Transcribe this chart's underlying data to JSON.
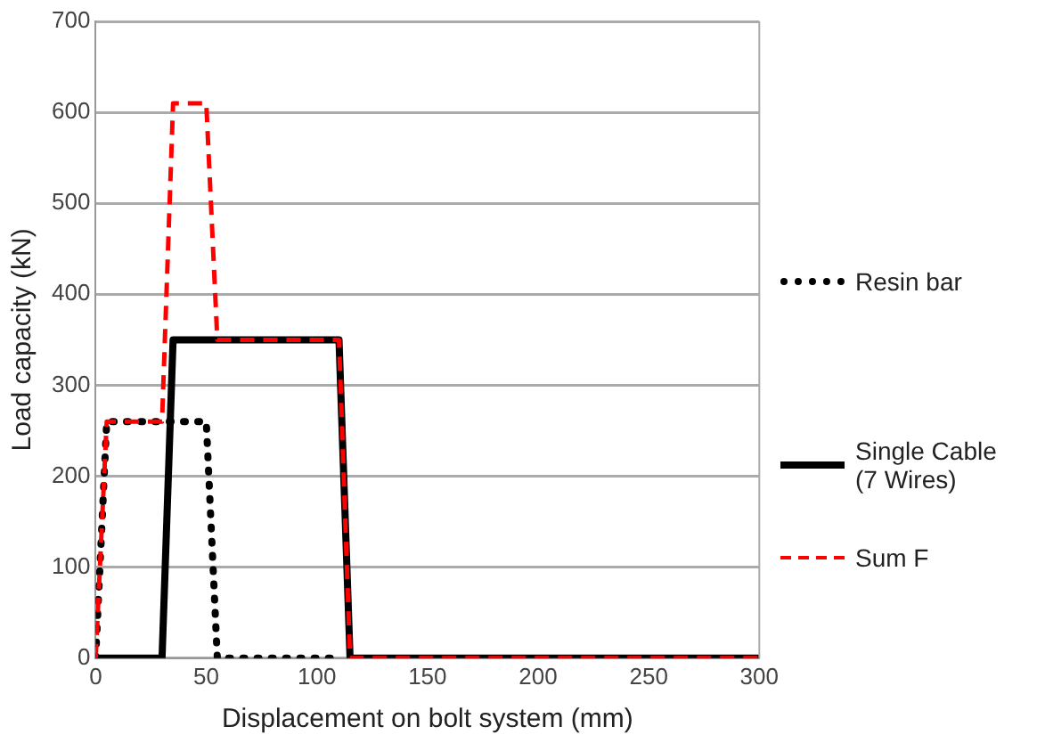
{
  "chart_data": {
    "type": "line",
    "xlabel": "Displacement on bolt system (mm)",
    "ylabel": "Load capacity (kN)",
    "xlim": [
      0,
      300
    ],
    "xticks": [
      0,
      50,
      100,
      150,
      200,
      250,
      300
    ],
    "ylim": [
      0,
      700
    ],
    "yticks": [
      0,
      100,
      200,
      300,
      400,
      500,
      600,
      700
    ],
    "grid": "y",
    "legend": "right",
    "marker": "none",
    "series": [
      {
        "name": "Resin bar",
        "color": "#000000",
        "line_style": "dotted",
        "x": [
          0,
          5,
          50,
          55,
          110
        ],
        "values": [
          0,
          260,
          260,
          0,
          0
        ]
      },
      {
        "name": "Single Cable (7 Wires)",
        "color": "#000000",
        "line_style": "solid",
        "x": [
          0,
          30,
          35,
          110,
          115,
          300
        ],
        "values": [
          0,
          0,
          350,
          350,
          0,
          0
        ]
      },
      {
        "name": "Sum F",
        "color": "#ff0000",
        "line_style": "dashed",
        "x": [
          0,
          5,
          30,
          35,
          50,
          55,
          110,
          115,
          300
        ],
        "values": [
          0,
          260,
          260,
          610,
          610,
          350,
          350,
          0,
          0
        ]
      }
    ]
  }
}
